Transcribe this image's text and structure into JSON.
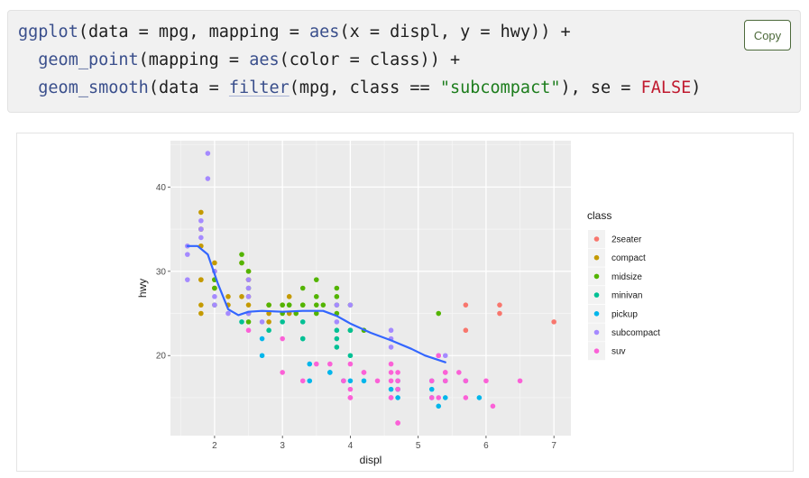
{
  "code": {
    "copy_label": "Copy",
    "line1": {
      "fn": "ggplot",
      "args": "(data = mpg, mapping = ",
      "aes": "aes",
      "rest": "(x = displ, y = hwy)) +"
    },
    "line2": {
      "indent": "  ",
      "fn": "geom_point",
      "open": "(mapping = ",
      "aes": "aes",
      "rest": "(color = class)) +"
    },
    "line3": {
      "indent": "  ",
      "fn": "geom_smooth",
      "open": "(data = ",
      "filter": "filter",
      "mid": "(mpg, class == ",
      "str": "\"subcompact\"",
      "sep": "), se = ",
      "kw": "FALSE",
      "close": ")"
    }
  },
  "chart_data": {
    "type": "scatter",
    "xlabel": "displ",
    "ylabel": "hwy",
    "xlim": [
      1.35,
      7.25
    ],
    "ylim": [
      10.5,
      45.5
    ],
    "xticks": [
      2,
      3,
      4,
      5,
      6,
      7
    ],
    "yticks": [
      20,
      30,
      40
    ],
    "panel_bg": "#ebebeb",
    "grid": true,
    "legend": {
      "title": "class",
      "placement": "right",
      "entries": [
        {
          "name": "2seater",
          "color": "#F8766D"
        },
        {
          "name": "compact",
          "color": "#C49A00"
        },
        {
          "name": "midsize",
          "color": "#53B400"
        },
        {
          "name": "minivan",
          "color": "#00C094"
        },
        {
          "name": "pickup",
          "color": "#00B6EB"
        },
        {
          "name": "subcompact",
          "color": "#A58AFF"
        },
        {
          "name": "suv",
          "color": "#FB61D7"
        }
      ]
    },
    "series": [
      {
        "name": "2seater",
        "points": [
          [
            5.7,
            26
          ],
          [
            5.7,
            23
          ],
          [
            6.2,
            26
          ],
          [
            6.2,
            25
          ],
          [
            7.0,
            24
          ]
        ]
      },
      {
        "name": "compact",
        "points": [
          [
            1.8,
            29
          ],
          [
            1.8,
            29
          ],
          [
            2.0,
            31
          ],
          [
            2.0,
            30
          ],
          [
            2.8,
            26
          ],
          [
            2.8,
            26
          ],
          [
            3.1,
            27
          ],
          [
            1.8,
            26
          ],
          [
            1.8,
            25
          ],
          [
            2.0,
            28
          ],
          [
            2.0,
            29
          ],
          [
            2.8,
            25
          ],
          [
            3.1,
            25
          ],
          [
            2.2,
            27
          ],
          [
            2.4,
            31
          ],
          [
            2.5,
            29
          ],
          [
            2.8,
            24
          ],
          [
            2.4,
            27
          ],
          [
            2.5,
            30
          ],
          [
            1.8,
            33
          ],
          [
            1.8,
            35
          ],
          [
            1.8,
            37
          ],
          [
            1.8,
            35
          ],
          [
            2.5,
            26
          ],
          [
            2.5,
            29
          ],
          [
            2.2,
            26
          ],
          [
            2.5,
            27
          ],
          [
            3.0,
            26
          ],
          [
            2.0,
            29
          ],
          [
            2.0,
            28
          ]
        ]
      },
      {
        "name": "midsize",
        "points": [
          [
            2.4,
            31
          ],
          [
            2.4,
            32
          ],
          [
            2.5,
            30
          ],
          [
            2.5,
            28
          ],
          [
            3.3,
            26
          ],
          [
            3.3,
            26
          ],
          [
            2.0,
            28
          ],
          [
            2.0,
            26
          ],
          [
            2.0,
            29
          ],
          [
            2.8,
            26
          ],
          [
            3.3,
            28
          ],
          [
            3.5,
            26
          ],
          [
            3.6,
            26
          ],
          [
            3.8,
            27
          ],
          [
            3.8,
            28
          ],
          [
            3.8,
            26
          ],
          [
            3.5,
            29
          ],
          [
            3.5,
            27
          ],
          [
            4.0,
            26
          ],
          [
            4.0,
            23
          ],
          [
            4.2,
            23
          ],
          [
            5.3,
            25
          ],
          [
            3.0,
            25
          ],
          [
            3.1,
            26
          ],
          [
            3.5,
            25
          ],
          [
            3.8,
            25
          ],
          [
            2.5,
            25
          ],
          [
            3.0,
            26
          ],
          [
            3.1,
            26
          ],
          [
            3.2,
            25
          ],
          [
            2.5,
            24
          ]
        ]
      },
      {
        "name": "minivan",
        "points": [
          [
            2.4,
            24
          ],
          [
            3.0,
            24
          ],
          [
            3.3,
            22
          ],
          [
            3.3,
            22
          ],
          [
            3.3,
            24
          ],
          [
            3.8,
            22
          ],
          [
            3.8,
            21
          ],
          [
            3.8,
            23
          ],
          [
            4.0,
            23
          ],
          [
            4.0,
            20
          ],
          [
            2.8,
            23
          ]
        ]
      },
      {
        "name": "pickup",
        "points": [
          [
            2.7,
            20
          ],
          [
            2.7,
            22
          ],
          [
            3.4,
            19
          ],
          [
            3.4,
            17
          ],
          [
            3.7,
            18
          ],
          [
            3.9,
            17
          ],
          [
            4.2,
            17
          ],
          [
            4.7,
            16
          ],
          [
            4.7,
            15
          ],
          [
            4.7,
            16
          ],
          [
            5.2,
            17
          ],
          [
            5.2,
            16
          ],
          [
            5.7,
            17
          ],
          [
            5.9,
            15
          ],
          [
            4.6,
            16
          ],
          [
            5.4,
            15
          ],
          [
            4.0,
            17
          ],
          [
            4.7,
            17
          ],
          [
            5.4,
            17
          ],
          [
            5.2,
            15
          ],
          [
            5.3,
            14
          ],
          [
            3.7,
            18
          ]
        ]
      },
      {
        "name": "subcompact",
        "points": [
          [
            1.6,
            33
          ],
          [
            1.6,
            32
          ],
          [
            1.6,
            29
          ],
          [
            1.8,
            34
          ],
          [
            1.8,
            36
          ],
          [
            1.9,
            44
          ],
          [
            1.9,
            41
          ],
          [
            2.0,
            27
          ],
          [
            2.0,
            26
          ],
          [
            2.0,
            30
          ],
          [
            2.5,
            29
          ],
          [
            2.5,
            28
          ],
          [
            2.5,
            27
          ],
          [
            2.7,
            24
          ],
          [
            3.8,
            26
          ],
          [
            3.8,
            24
          ],
          [
            4.0,
            26
          ],
          [
            4.6,
            23
          ],
          [
            4.6,
            22
          ],
          [
            5.4,
            20
          ],
          [
            2.2,
            25
          ],
          [
            4.6,
            21
          ],
          [
            5.3,
            20
          ],
          [
            2.5,
            25
          ],
          [
            1.8,
            35
          ]
        ]
      },
      {
        "name": "suv",
        "points": [
          [
            5.7,
            17
          ],
          [
            5.3,
            20
          ],
          [
            5.3,
            15
          ],
          [
            5.7,
            15
          ],
          [
            6.5,
            17
          ],
          [
            4.2,
            18
          ],
          [
            4.2,
            18
          ],
          [
            4.6,
            17
          ],
          [
            5.4,
            17
          ],
          [
            5.4,
            18
          ],
          [
            6.0,
            17
          ],
          [
            6.1,
            14
          ],
          [
            4.7,
            16
          ],
          [
            4.7,
            12
          ],
          [
            4.7,
            17
          ],
          [
            5.2,
            15
          ],
          [
            5.2,
            17
          ],
          [
            3.9,
            17
          ],
          [
            4.0,
            19
          ],
          [
            4.6,
            15
          ],
          [
            4.6,
            15
          ],
          [
            4.0,
            15
          ],
          [
            4.4,
            17
          ],
          [
            4.6,
            19
          ],
          [
            5.4,
            18
          ],
          [
            5.6,
            18
          ],
          [
            3.7,
            19
          ],
          [
            2.5,
            23
          ],
          [
            3.0,
            22
          ],
          [
            3.5,
            19
          ],
          [
            3.0,
            18
          ],
          [
            3.3,
            17
          ],
          [
            4.0,
            15
          ],
          [
            4.7,
            12
          ],
          [
            4.7,
            18
          ],
          [
            4.0,
            16
          ],
          [
            4.6,
            18
          ]
        ]
      }
    ],
    "smooth": {
      "name": "subcompact",
      "color": "#3366FF",
      "points": [
        [
          1.6,
          33
        ],
        [
          1.75,
          33
        ],
        [
          1.9,
          32
        ],
        [
          2.05,
          28.5
        ],
        [
          2.2,
          25.5
        ],
        [
          2.35,
          24.8
        ],
        [
          2.5,
          25.2
        ],
        [
          2.7,
          25.3
        ],
        [
          3.0,
          25.2
        ],
        [
          3.3,
          25.3
        ],
        [
          3.6,
          25.3
        ],
        [
          3.8,
          24.7
        ],
        [
          4.0,
          23.8
        ],
        [
          4.3,
          22.7
        ],
        [
          4.6,
          21.8
        ],
        [
          4.9,
          20.8
        ],
        [
          5.1,
          20.0
        ],
        [
          5.4,
          19.2
        ]
      ]
    }
  }
}
